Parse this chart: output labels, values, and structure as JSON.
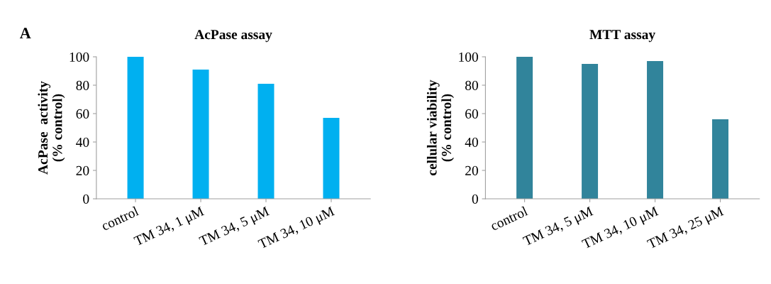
{
  "chart_data": [
    {
      "type": "bar",
      "title": "AcPase assay",
      "ylabel": "AcPase  activity\n(% control)",
      "annotations": [
        "A"
      ],
      "categories": [
        "control",
        "TM 34, 1 μM",
        "TM 34, 5 μM",
        "TM 34, 10 μM"
      ],
      "values": [
        100,
        91,
        81,
        57
      ],
      "color": "#00b0f0",
      "ylim": [
        0,
        100
      ],
      "yticks": [
        0,
        20,
        40,
        60,
        80,
        100
      ],
      "grid": false
    },
    {
      "type": "bar",
      "title": "MTT assay",
      "ylabel": "cellular viability\n(% control)",
      "categories": [
        "control",
        "TM 34, 5 μM",
        "TM 34, 10 μM",
        "TM 34, 25 μM"
      ],
      "values": [
        100,
        95,
        97,
        56
      ],
      "color": "#31849b",
      "ylim": [
        0,
        100
      ],
      "yticks": [
        0,
        20,
        40,
        60,
        80,
        100
      ],
      "grid": false
    }
  ]
}
